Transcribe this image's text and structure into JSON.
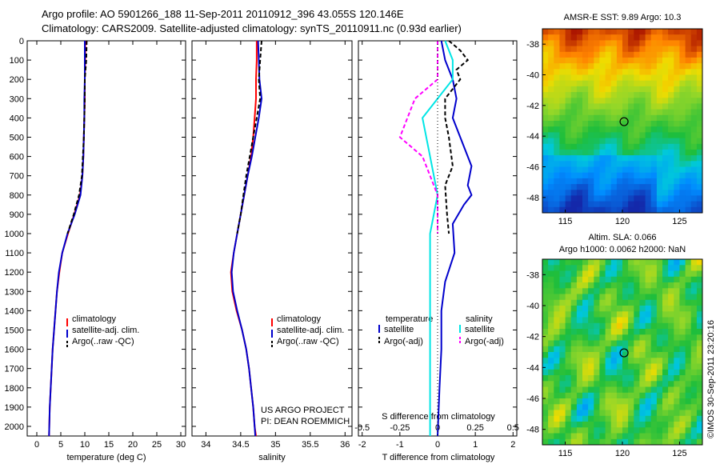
{
  "header": {
    "line1": "Argo profile: AO 5901266_188 11-Sep-2011 20110912_396 43.055S 120.146E",
    "line2": "Climatology: CARS2009. Satellite-adjusted climatology: synTS_20110911.nc (0.93d earlier)"
  },
  "colors": {
    "climatology": "#ff0000",
    "satellite": "#0000cc",
    "argo": "#000000",
    "salinity_satellite": "#00e5e5",
    "salinity_argo": "#ff00ff"
  },
  "credits": {
    "project": "US ARGO PROJECT",
    "pi": "PI: DEAN ROEMMICH",
    "imos": "©IMOS 30-Sep-2011 23:20:16"
  },
  "chart_data": [
    {
      "type": "line",
      "panel": "temperature",
      "xlabel": "temperature (deg C)",
      "ylabel": "",
      "xlim": [
        -2,
        31
      ],
      "ylim": [
        2050,
        0
      ],
      "xticks": [
        "0",
        "5",
        "10",
        "15",
        "20",
        "25",
        "30"
      ],
      "yticks": [
        "0",
        "100",
        "200",
        "300",
        "400",
        "500",
        "600",
        "700",
        "800",
        "900",
        "1000",
        "1100",
        "1200",
        "1300",
        "1400",
        "1500",
        "1600",
        "1700",
        "1800",
        "1900",
        "2000"
      ],
      "legend": [
        "climatology",
        "satellite-adj. clim.",
        "Argo(..raw -QC)"
      ],
      "series": [
        {
          "name": "climatology",
          "style": "solid",
          "points": [
            [
              10.1,
              0
            ],
            [
              10.1,
              100
            ],
            [
              10.0,
              200
            ],
            [
              10.0,
              300
            ],
            [
              9.9,
              400
            ],
            [
              9.8,
              500
            ],
            [
              9.7,
              600
            ],
            [
              9.5,
              700
            ],
            [
              9.0,
              800
            ],
            [
              7.8,
              900
            ],
            [
              6.5,
              1000
            ],
            [
              5.3,
              1100
            ],
            [
              4.7,
              1200
            ],
            [
              4.2,
              1300
            ],
            [
              3.9,
              1400
            ],
            [
              3.6,
              1500
            ],
            [
              3.3,
              1600
            ],
            [
              3.1,
              1700
            ],
            [
              2.9,
              1800
            ],
            [
              2.7,
              1900
            ],
            [
              2.6,
              2000
            ],
            [
              2.55,
              2050
            ]
          ]
        },
        {
          "name": "satellite-adj. clim.",
          "style": "solid",
          "points": [
            [
              10.0,
              0
            ],
            [
              10.0,
              100
            ],
            [
              10.0,
              200
            ],
            [
              9.9,
              300
            ],
            [
              9.9,
              400
            ],
            [
              9.8,
              500
            ],
            [
              9.7,
              600
            ],
            [
              9.5,
              700
            ],
            [
              9.1,
              800
            ],
            [
              7.9,
              900
            ],
            [
              6.4,
              1000
            ],
            [
              5.3,
              1100
            ],
            [
              4.6,
              1200
            ],
            [
              4.2,
              1300
            ],
            [
              3.9,
              1400
            ],
            [
              3.6,
              1500
            ],
            [
              3.3,
              1600
            ],
            [
              3.1,
              1700
            ],
            [
              2.9,
              1800
            ],
            [
              2.7,
              1900
            ],
            [
              2.6,
              2000
            ],
            [
              2.55,
              2050
            ]
          ]
        },
        {
          "name": "Argo(..raw -QC)",
          "style": "dashed",
          "points": [
            [
              10.4,
              0
            ],
            [
              10.3,
              100
            ],
            [
              10.0,
              200
            ],
            [
              10.0,
              300
            ],
            [
              9.9,
              400
            ],
            [
              9.8,
              500
            ],
            [
              9.6,
              600
            ],
            [
              9.4,
              700
            ],
            [
              8.8,
              800
            ],
            [
              7.7,
              900
            ],
            [
              6.4,
              1000
            ]
          ]
        }
      ]
    },
    {
      "type": "line",
      "panel": "salinity",
      "xlabel": "salinity",
      "xlim": [
        33.8,
        36.1
      ],
      "ylim": [
        2050,
        0
      ],
      "xticks": [
        "34",
        "34.5",
        "35",
        "35.5",
        "36"
      ],
      "legend": [
        "climatology",
        "satellite-adj. clim.",
        "Argo(..raw -QC)"
      ],
      "series": [
        {
          "name": "climatology",
          "style": "solid",
          "points": [
            [
              34.73,
              0
            ],
            [
              34.73,
              100
            ],
            [
              34.72,
              200
            ],
            [
              34.72,
              300
            ],
            [
              34.7,
              400
            ],
            [
              34.68,
              500
            ],
            [
              34.65,
              600
            ],
            [
              34.6,
              700
            ],
            [
              34.55,
              800
            ],
            [
              34.5,
              900
            ],
            [
              34.45,
              1000
            ],
            [
              34.4,
              1100
            ],
            [
              34.36,
              1200
            ],
            [
              34.38,
              1300
            ],
            [
              34.44,
              1400
            ],
            [
              34.52,
              1500
            ],
            [
              34.58,
              1600
            ],
            [
              34.62,
              1700
            ],
            [
              34.65,
              1800
            ],
            [
              34.68,
              1900
            ],
            [
              34.7,
              2000
            ],
            [
              34.72,
              2050
            ]
          ]
        },
        {
          "name": "satellite-adj. clim.",
          "style": "solid",
          "points": [
            [
              34.75,
              0
            ],
            [
              34.76,
              100
            ],
            [
              34.77,
              200
            ],
            [
              34.8,
              300
            ],
            [
              34.76,
              400
            ],
            [
              34.71,
              500
            ],
            [
              34.66,
              600
            ],
            [
              34.6,
              700
            ],
            [
              34.55,
              800
            ],
            [
              34.5,
              900
            ],
            [
              34.45,
              1000
            ],
            [
              34.4,
              1100
            ],
            [
              34.37,
              1200
            ],
            [
              34.39,
              1300
            ],
            [
              34.45,
              1400
            ],
            [
              34.52,
              1500
            ],
            [
              34.58,
              1600
            ],
            [
              34.62,
              1700
            ],
            [
              34.65,
              1800
            ],
            [
              34.68,
              1900
            ],
            [
              34.7,
              2000
            ],
            [
              34.71,
              2050
            ]
          ]
        },
        {
          "name": "Argo(..raw -QC)",
          "style": "dashed",
          "points": [
            [
              34.8,
              0
            ],
            [
              34.78,
              100
            ],
            [
              34.76,
              200
            ],
            [
              34.78,
              300
            ],
            [
              34.73,
              400
            ],
            [
              34.68,
              500
            ],
            [
              34.63,
              600
            ],
            [
              34.58,
              700
            ],
            [
              34.54,
              800
            ],
            [
              34.5,
              900
            ],
            [
              34.45,
              1000
            ]
          ]
        }
      ]
    },
    {
      "type": "line",
      "panel": "difference",
      "xlabel": "T difference from climatology",
      "x2label": "S difference from climatology",
      "xlim": [
        -2.1,
        2.1
      ],
      "ylim": [
        2050,
        0
      ],
      "xticks": [
        "-2",
        "-1",
        "0",
        "1",
        "2"
      ],
      "x2ticks": [
        "-0.5",
        "-0.25",
        "0",
        "0.25",
        "0.5"
      ],
      "legend_groups": [
        "temperature",
        "salinity"
      ],
      "legend": [
        "satellite",
        "Argo(-adj)",
        "satellite",
        "Argo(-adj)"
      ],
      "series": [
        {
          "name": "temperature satellite",
          "style": "solid",
          "points": [
            [
              0.1,
              0
            ],
            [
              0.2,
              100
            ],
            [
              0.4,
              200
            ],
            [
              0.5,
              300
            ],
            [
              0.4,
              400
            ],
            [
              0.6,
              500
            ],
            [
              0.9,
              650
            ],
            [
              0.8,
              750
            ],
            [
              0.9,
              800
            ],
            [
              0.7,
              850
            ],
            [
              0.4,
              950
            ],
            [
              0.45,
              1100
            ],
            [
              0.2,
              1250
            ],
            [
              0.1,
              1400
            ],
            [
              0.1,
              1600
            ],
            [
              0.05,
              1800
            ],
            [
              0.0,
              2050
            ]
          ]
        },
        {
          "name": "temperature Argo(-adj)",
          "style": "dashed",
          "points": [
            [
              0.3,
              0
            ],
            [
              0.6,
              50
            ],
            [
              0.8,
              100
            ],
            [
              0.5,
              150
            ],
            [
              0.6,
              200
            ],
            [
              0.4,
              250
            ],
            [
              0.2,
              300
            ],
            [
              0.2,
              400
            ],
            [
              0.3,
              500
            ],
            [
              0.4,
              650
            ],
            [
              0.2,
              750
            ],
            [
              0.25,
              900
            ],
            [
              0.3,
              1000
            ]
          ]
        },
        {
          "name": "salinity satellite",
          "style": "solid",
          "points": [
            [
              0.05,
              0
            ],
            [
              0.1,
              100
            ],
            [
              0.1,
              200
            ],
            [
              0.0,
              300
            ],
            [
              -0.1,
              400
            ],
            [
              -0.05,
              600
            ],
            [
              0.0,
              800
            ],
            [
              -0.05,
              1000
            ],
            [
              -0.05,
              1200
            ],
            [
              -0.05,
              1400
            ],
            [
              -0.05,
              1600
            ],
            [
              -0.05,
              1800
            ],
            [
              -0.05,
              2050
            ]
          ]
        },
        {
          "name": "salinity Argo(-adj)",
          "style": "dashed",
          "points": [
            [
              0.0,
              0
            ],
            [
              0.0,
              200
            ],
            [
              -0.15,
              300
            ],
            [
              -0.2,
              400
            ],
            [
              -0.25,
              500
            ],
            [
              -0.1,
              600
            ],
            [
              -0.05,
              700
            ],
            [
              0.0,
              800
            ],
            [
              0.0,
              1000
            ]
          ]
        }
      ]
    },
    {
      "type": "heatmap",
      "panel": "sst map",
      "title": "AMSR-E SST: 9.89 Argo: 10.3",
      "xlim": [
        113,
        127
      ],
      "ylim": [
        -49,
        -37
      ],
      "xticks": [
        "115",
        "120",
        "125"
      ],
      "yticks": [
        "-38",
        "-40",
        "-42",
        "-44",
        "-46",
        "-48"
      ],
      "marker": {
        "lon": 120.146,
        "lat": -43.055
      }
    },
    {
      "type": "heatmap",
      "panel": "sla map",
      "title_line1": "Altim. SLA: 0.066",
      "title_line2": "Argo h1000: 0.0062 h2000: NaN",
      "xlim": [
        113,
        127
      ],
      "ylim": [
        -49,
        -37
      ],
      "xticks": [
        "115",
        "120",
        "125"
      ],
      "yticks": [
        "-38",
        "-40",
        "-42",
        "-44",
        "-46",
        "-48"
      ],
      "marker": {
        "lon": 120.146,
        "lat": -43.055
      }
    }
  ]
}
